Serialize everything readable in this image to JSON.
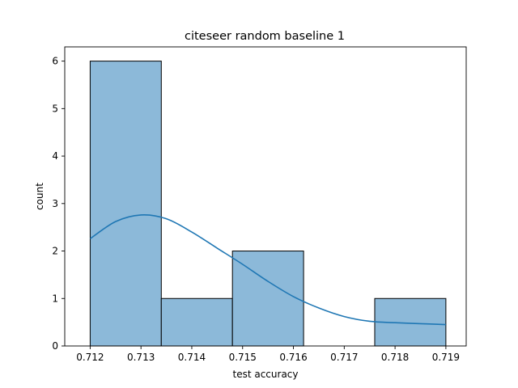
{
  "chart_data": {
    "type": "bar",
    "subtype": "histogram",
    "title": "citeseer random baseline 1",
    "xlabel": "test accuracy",
    "ylabel": "count",
    "xlim": [
      0.7115,
      0.7194
    ],
    "ylim": [
      0,
      6.3
    ],
    "xticks": [
      "0.712",
      "0.713",
      "0.714",
      "0.715",
      "0.716",
      "0.717",
      "0.718",
      "0.719"
    ],
    "yticks": [
      "0",
      "1",
      "2",
      "3",
      "4",
      "5",
      "6"
    ],
    "bins": [
      {
        "start": 0.712,
        "end": 0.7134,
        "count": 6
      },
      {
        "start": 0.7134,
        "end": 0.7148,
        "count": 1
      },
      {
        "start": 0.7148,
        "end": 0.7162,
        "count": 2
      },
      {
        "start": 0.7162,
        "end": 0.7176,
        "count": 0
      },
      {
        "start": 0.7176,
        "end": 0.719,
        "count": 1
      }
    ],
    "kde": {
      "x": [
        0.712,
        0.7125,
        0.713,
        0.7135,
        0.714,
        0.7145,
        0.715,
        0.7155,
        0.716,
        0.7165,
        0.717,
        0.7175,
        0.718,
        0.7185,
        0.719
      ],
      "y": [
        2.26,
        2.62,
        2.76,
        2.68,
        2.4,
        2.06,
        1.72,
        1.36,
        1.04,
        0.8,
        0.62,
        0.52,
        0.49,
        0.47,
        0.45
      ]
    },
    "grid": false,
    "legend": "none",
    "colors": {
      "bar_fill": "#8cb9d9",
      "bar_edge": "#000000",
      "kde_line": "#1f77b4"
    }
  }
}
